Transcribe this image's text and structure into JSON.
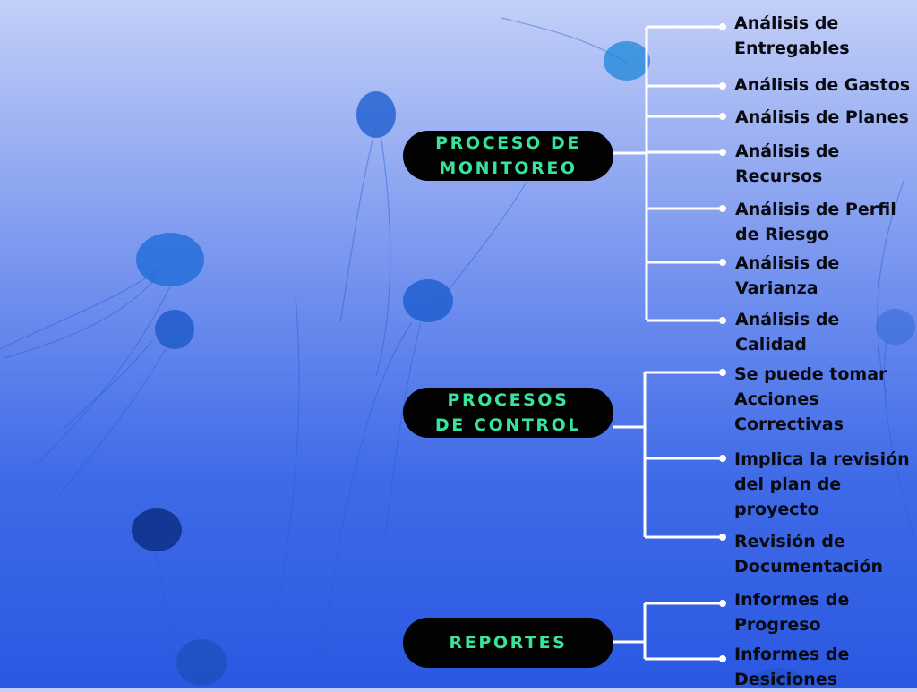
{
  "groups": [
    {
      "title": "PROCESO DE\nMONITOREO",
      "items": [
        "Análisis de\nEntregables",
        "Análisis de Gastos",
        "Análisis de Planes",
        "Análisis de\nRecursos",
        "Análisis de Perfil\nde Riesgo",
        "Análisis de\nVarianza",
        "Análisis de\nCalidad"
      ]
    },
    {
      "title": "PROCESOS\nDE CONTROL",
      "items": [
        "Se puede tomar\nAcciones\nCorrectivas",
        "Implica la revisión\ndel plan de\nproyecto",
        "Revisión de\nDocumentación"
      ]
    },
    {
      "title": "REPORTES",
      "items": [
        "Informes de\nProgreso",
        "Informes de\nDesiciones"
      ]
    }
  ],
  "colors": {
    "pill_background": "#020203",
    "pill_text": "#38e39a",
    "connector": "#ffffff",
    "leaf_text": "#0a0a12"
  },
  "background": "jellyfish-photo"
}
